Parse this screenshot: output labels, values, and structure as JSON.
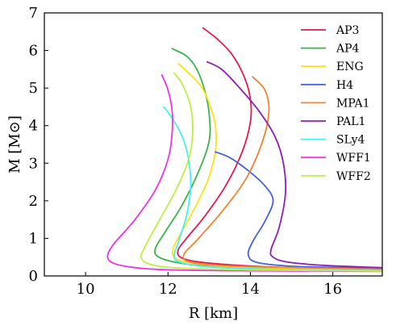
{
  "chart_data": {
    "type": "line",
    "xlabel": "R [km]",
    "ylabel": "M [M⊙]",
    "xlim": [
      9,
      17.2
    ],
    "ylim": [
      0,
      7
    ],
    "xticks": [
      10,
      12,
      14,
      16
    ],
    "yticks": [
      0,
      1,
      2,
      3,
      4,
      5,
      6,
      7
    ],
    "grid": false,
    "legend_position": "top-right",
    "series": [
      {
        "name": "AP3",
        "color": "#e31a4d",
        "points": [
          [
            17.2,
            0.17
          ],
          [
            15.0,
            0.22
          ],
          [
            13.6,
            0.29
          ],
          [
            12.7,
            0.38
          ],
          [
            12.3,
            0.5
          ],
          [
            12.25,
            0.7
          ],
          [
            12.45,
            1.0
          ],
          [
            12.9,
            1.6
          ],
          [
            13.4,
            2.4
          ],
          [
            13.8,
            3.3
          ],
          [
            14.0,
            4.1
          ],
          [
            14.0,
            4.7
          ],
          [
            13.85,
            5.3
          ],
          [
            13.55,
            5.9
          ],
          [
            13.2,
            6.3
          ],
          [
            12.85,
            6.6
          ]
        ]
      },
      {
        "name": "AP4",
        "color": "#3cb44b",
        "points": [
          [
            17.2,
            0.16
          ],
          [
            14.5,
            0.2
          ],
          [
            13.0,
            0.26
          ],
          [
            12.2,
            0.36
          ],
          [
            11.75,
            0.52
          ],
          [
            11.7,
            0.75
          ],
          [
            11.95,
            1.2
          ],
          [
            12.35,
            1.9
          ],
          [
            12.75,
            2.8
          ],
          [
            13.0,
            3.6
          ],
          [
            13.0,
            4.3
          ],
          [
            12.9,
            4.9
          ],
          [
            12.7,
            5.5
          ],
          [
            12.45,
            5.85
          ],
          [
            12.1,
            6.05
          ]
        ]
      },
      {
        "name": "ENG",
        "color": "#ffe119",
        "points": [
          [
            17.2,
            0.15
          ],
          [
            14.8,
            0.2
          ],
          [
            13.3,
            0.26
          ],
          [
            12.5,
            0.36
          ],
          [
            12.15,
            0.5
          ],
          [
            12.15,
            0.8
          ],
          [
            12.55,
            1.6
          ],
          [
            12.95,
            2.5
          ],
          [
            13.15,
            3.3
          ],
          [
            13.15,
            4.0
          ],
          [
            13.0,
            4.6
          ],
          [
            12.8,
            5.05
          ],
          [
            12.45,
            5.45
          ],
          [
            12.25,
            5.65
          ]
        ]
      },
      {
        "name": "H4",
        "color": "#4363d8",
        "points": [
          [
            17.2,
            0.2
          ],
          [
            15.2,
            0.25
          ],
          [
            14.2,
            0.35
          ],
          [
            13.95,
            0.55
          ],
          [
            14.05,
            0.9
          ],
          [
            14.35,
            1.45
          ],
          [
            14.55,
            2.0
          ],
          [
            14.35,
            2.4
          ],
          [
            13.95,
            2.8
          ],
          [
            13.5,
            3.15
          ],
          [
            13.15,
            3.3
          ]
        ]
      },
      {
        "name": "MPA1",
        "color": "#f58231",
        "points": [
          [
            17.2,
            0.18
          ],
          [
            14.2,
            0.24
          ],
          [
            13.0,
            0.3
          ],
          [
            12.45,
            0.4
          ],
          [
            12.4,
            0.6
          ],
          [
            12.7,
            0.95
          ],
          [
            13.3,
            1.7
          ],
          [
            13.9,
            2.6
          ],
          [
            14.3,
            3.6
          ],
          [
            14.45,
            4.4
          ],
          [
            14.35,
            4.95
          ],
          [
            14.05,
            5.3
          ]
        ]
      },
      {
        "name": "PAL1",
        "color": "#911eb4",
        "points": [
          [
            17.2,
            0.22
          ],
          [
            15.8,
            0.28
          ],
          [
            14.9,
            0.37
          ],
          [
            14.55,
            0.5
          ],
          [
            14.5,
            0.7
          ],
          [
            14.7,
            1.3
          ],
          [
            14.85,
            2.2
          ],
          [
            14.8,
            3.0
          ],
          [
            14.6,
            3.7
          ],
          [
            14.2,
            4.4
          ],
          [
            13.7,
            5.05
          ],
          [
            13.3,
            5.5
          ],
          [
            12.95,
            5.7
          ]
        ]
      },
      {
        "name": "SLy4",
        "color": "#46f0f0",
        "points": [
          [
            17.2,
            0.14
          ],
          [
            14.5,
            0.18
          ],
          [
            13.0,
            0.24
          ],
          [
            12.35,
            0.35
          ],
          [
            12.15,
            0.5
          ],
          [
            12.25,
            0.9
          ],
          [
            12.45,
            1.6
          ],
          [
            12.55,
            2.4
          ],
          [
            12.5,
            3.1
          ],
          [
            12.35,
            3.7
          ],
          [
            12.1,
            4.2
          ],
          [
            11.9,
            4.5
          ]
        ]
      },
      {
        "name": "WFF1",
        "color": "#f032e6",
        "points": [
          [
            17.2,
            0.12
          ],
          [
            13.5,
            0.14
          ],
          [
            11.8,
            0.17
          ],
          [
            10.9,
            0.27
          ],
          [
            10.55,
            0.45
          ],
          [
            10.65,
            0.8
          ],
          [
            11.2,
            1.5
          ],
          [
            11.7,
            2.3
          ],
          [
            12.0,
            3.1
          ],
          [
            12.1,
            3.8
          ],
          [
            12.1,
            4.4
          ],
          [
            12.0,
            4.95
          ],
          [
            11.85,
            5.35
          ]
        ]
      },
      {
        "name": "WFF2",
        "color": "#bfef45",
        "points": [
          [
            17.2,
            0.13
          ],
          [
            14.0,
            0.16
          ],
          [
            12.3,
            0.21
          ],
          [
            11.6,
            0.3
          ],
          [
            11.35,
            0.48
          ],
          [
            11.45,
            0.8
          ],
          [
            11.8,
            1.5
          ],
          [
            12.2,
            2.3
          ],
          [
            12.5,
            3.1
          ],
          [
            12.6,
            3.8
          ],
          [
            12.55,
            4.5
          ],
          [
            12.35,
            5.1
          ],
          [
            12.15,
            5.4
          ]
        ]
      }
    ]
  }
}
